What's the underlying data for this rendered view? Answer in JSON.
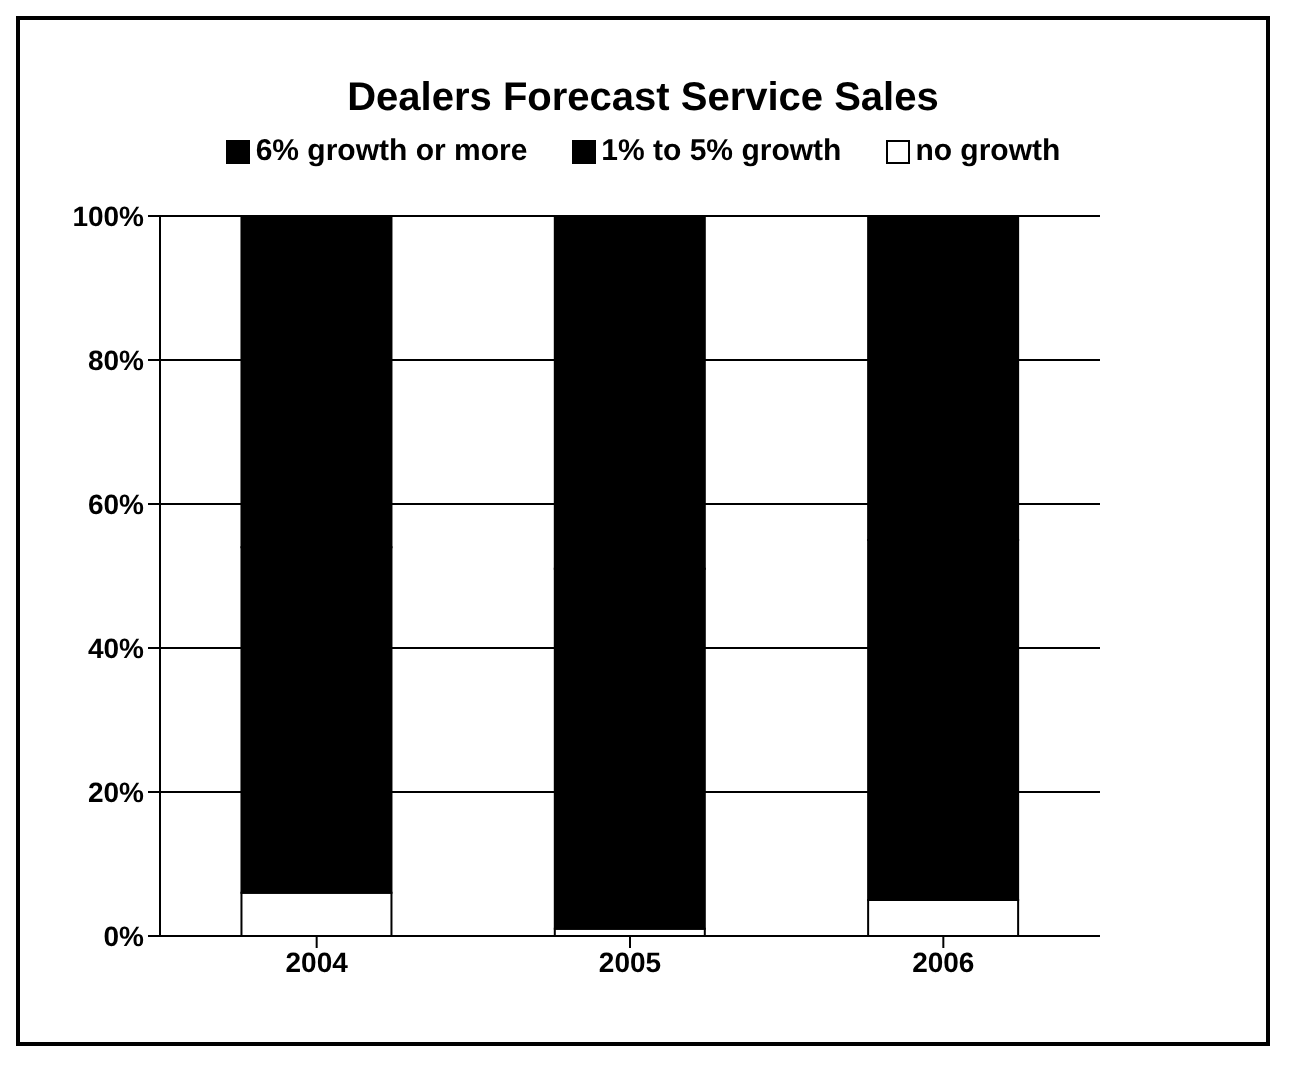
{
  "chart_data": {
    "type": "bar",
    "title": "Dealers Forecast Service Sales",
    "categories": [
      "2004",
      "2005",
      "2006"
    ],
    "stacked": true,
    "series": [
      {
        "name": "no growth",
        "color": "#ffffff",
        "values": [
          6,
          1,
          5
        ]
      },
      {
        "name": "1% to 5% growth",
        "color": "#000000",
        "values": [
          48,
          50,
          50
        ]
      },
      {
        "name": "6% growth or more",
        "color": "#000000",
        "values": [
          46,
          49,
          45
        ]
      }
    ],
    "ylim": [
      0,
      100
    ],
    "yticks": [
      {
        "value": 0,
        "label": "0%"
      },
      {
        "value": 20,
        "label": "20%"
      },
      {
        "value": 40,
        "label": "40%"
      },
      {
        "value": 60,
        "label": "60%"
      },
      {
        "value": 80,
        "label": "80%"
      },
      {
        "value": 100,
        "label": "100%"
      }
    ],
    "grid": "y",
    "legend": "top"
  }
}
